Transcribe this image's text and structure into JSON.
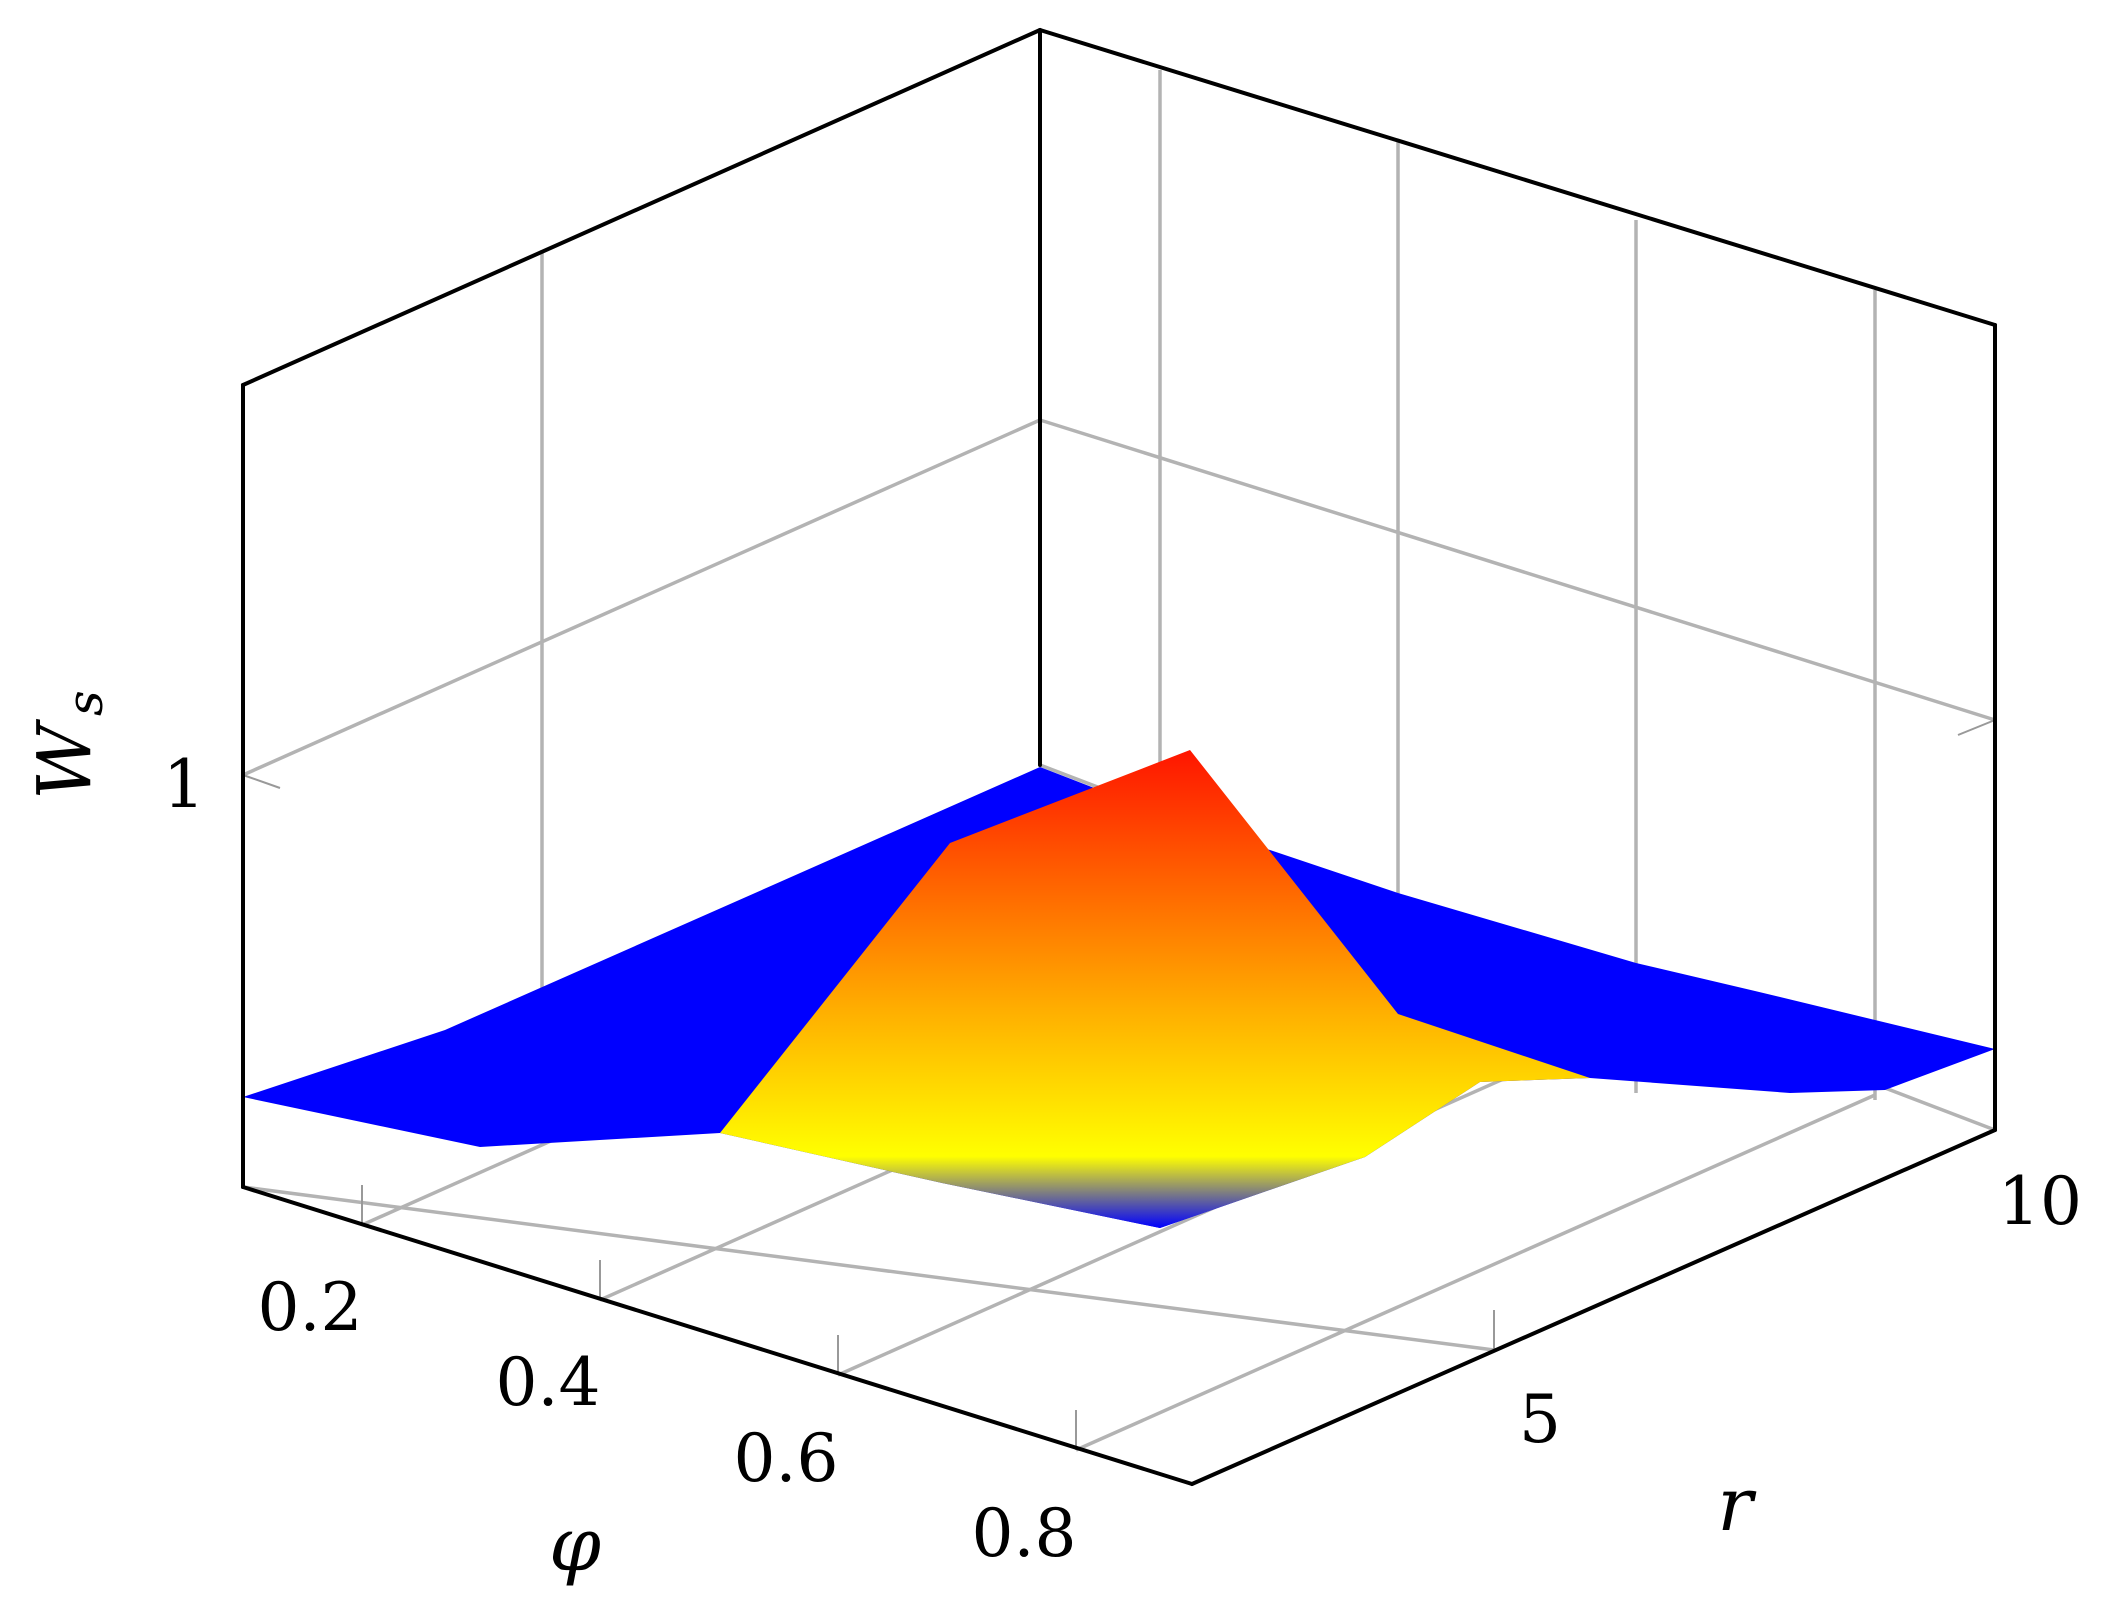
{
  "chart_data": {
    "type": "surface3d",
    "xlabel": "φ",
    "ylabel": "r",
    "zlabel": "W",
    "zlabel_subscript": "s",
    "x_ticks": [
      "0.2",
      "0.4",
      "0.6",
      "0.8"
    ],
    "y_ticks": [
      "5",
      "10"
    ],
    "z_ticks": [
      "1"
    ],
    "xlim": [
      0.1,
      0.9
    ],
    "ylim": [
      0,
      10.5
    ],
    "zlim": [
      0,
      2
    ],
    "x": [
      0.1,
      0.3,
      0.5,
      0.7,
      0.9
    ],
    "y": [
      0,
      2.5,
      5,
      7.5,
      10
    ],
    "z": [
      [
        0.15,
        0.15,
        0.15,
        0.15,
        0.15
      ],
      [
        0.1,
        0.13,
        0.15,
        0.28,
        1.0
      ],
      [
        0.12,
        0.1,
        0.9,
        1.08,
        0.45
      ],
      [
        0.05,
        0.1,
        0.22,
        0.15,
        0.28
      ],
      [
        0.2,
        0.15,
        0.25,
        0.15,
        0.15
      ]
    ],
    "colormap": [
      "#0000ff",
      "#ffff00",
      "#ff0000"
    ],
    "grid": true
  }
}
